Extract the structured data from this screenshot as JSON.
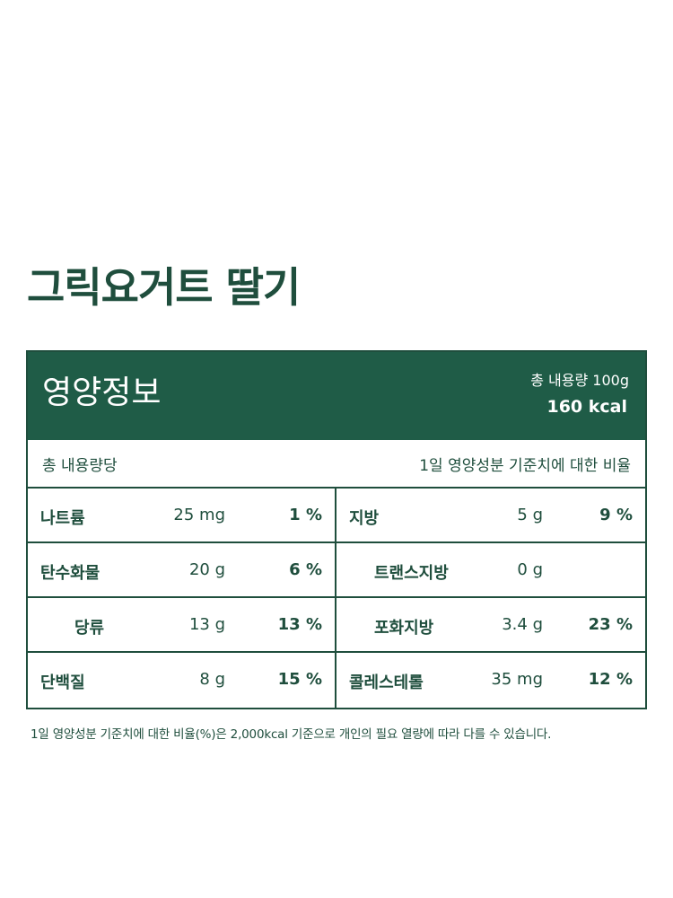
{
  "product": {
    "title": "그릭요거트 딸기"
  },
  "panel": {
    "title": "영양정보",
    "total_content": "총 내용량 100g",
    "kcal": "160 kcal",
    "per_label": "총 내용량당",
    "ratio_label": "1일 영양성분 기준치에 대한 비율",
    "accent_color": "#1f5c47"
  },
  "nutrients": {
    "sodium": {
      "name": "나트륨",
      "amount": "25 mg",
      "pct": "1 %"
    },
    "fat": {
      "name": "지방",
      "amount": "5 g",
      "pct": "9 %"
    },
    "carbs": {
      "name": "탄수화물",
      "amount": "20 g",
      "pct": "6 %"
    },
    "trans_fat": {
      "name": "트랜스지방",
      "amount": "0 g",
      "pct": ""
    },
    "sugars": {
      "name": "당류",
      "amount": "13 g",
      "pct": "13 %"
    },
    "sat_fat": {
      "name": "포화지방",
      "amount": "3.4 g",
      "pct": "23 %"
    },
    "protein": {
      "name": "단백질",
      "amount": "8 g",
      "pct": "15 %"
    },
    "cholesterol": {
      "name": "콜레스테롤",
      "amount": "35 mg",
      "pct": "12 %"
    }
  },
  "footnote": "1일 영양성분 기준치에 대한 비율(%)은 2,000kcal 기준으로 개인의 필요 열량에 따라 다를 수 있습니다."
}
